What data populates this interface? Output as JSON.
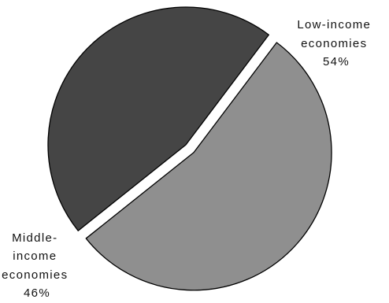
{
  "chart_data": {
    "type": "pie",
    "title": "",
    "slices": [
      {
        "label_lines": [
          "Low-income",
          "economies"
        ],
        "value": 54,
        "value_label": "54%",
        "color": "#8f8f8f",
        "exploded": true
      },
      {
        "label_lines": [
          "Middle-",
          "income",
          "economies"
        ],
        "value": 46,
        "value_label": "46%",
        "color": "#454545",
        "exploded": false
      }
    ],
    "legend": "none"
  }
}
